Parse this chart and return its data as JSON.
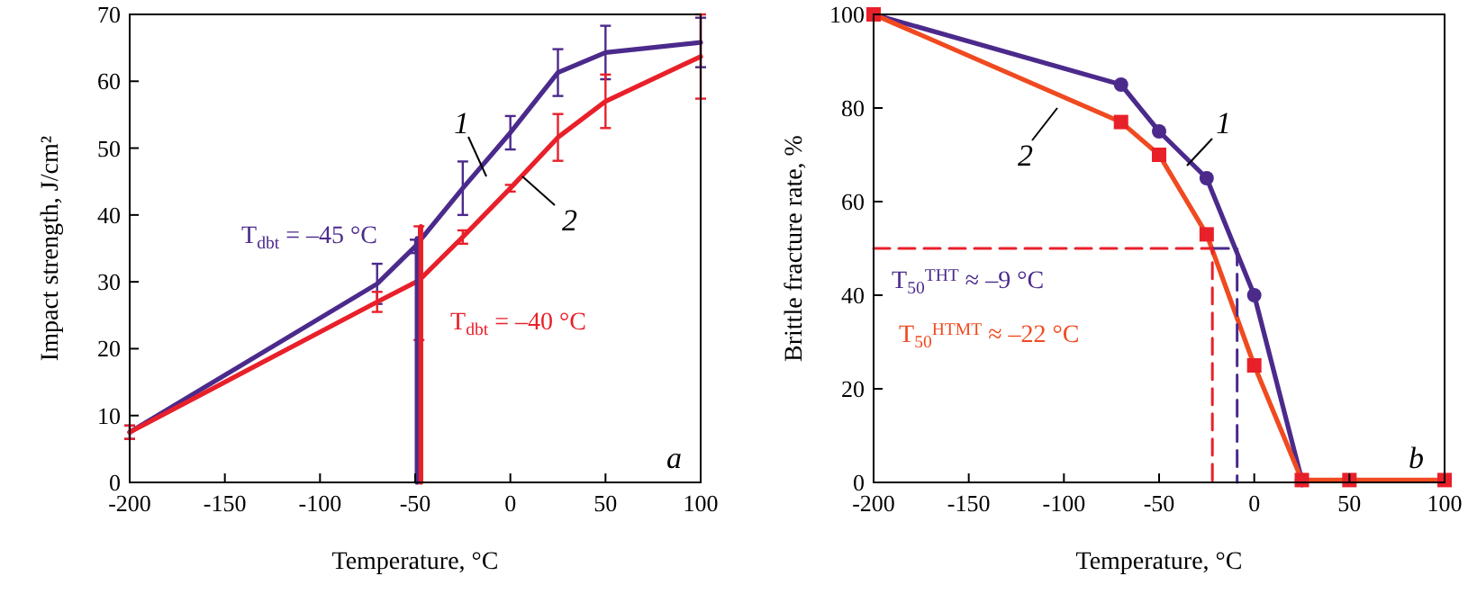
{
  "chart_data": [
    {
      "type": "line",
      "xlabel": "Temperature, °C",
      "ylabel": "Impact strength, J/cm²",
      "xlim": [
        -200,
        100
      ],
      "ylim": [
        0,
        70
      ],
      "xticks": [
        -200,
        -150,
        -100,
        -50,
        0,
        50,
        100
      ],
      "yticks": [
        0,
        10,
        20,
        30,
        40,
        50,
        60,
        70
      ],
      "grid": false,
      "marker": "none",
      "line_style": "solid",
      "series": [
        {
          "color": "#4b2a8c",
          "x": [
            -200,
            -70,
            -50,
            -25,
            0,
            25,
            50,
            100
          ],
          "values": [
            7.5,
            29.7,
            35.3,
            44,
            52.3,
            61.3,
            64.3,
            65.8
          ],
          "errors": [
            1,
            3,
            1,
            4,
            2.5,
            3.5,
            4,
            3.7
          ]
        },
        {
          "color": "#e8202a",
          "x": [
            -200,
            -70,
            -48,
            -25,
            0,
            25,
            50,
            100
          ],
          "values": [
            7.5,
            27,
            30.2,
            36.7,
            44,
            51.6,
            57,
            63.7
          ],
          "errors": [
            1,
            1.5,
            [
              21.3,
              38.3
            ],
            1,
            0.5,
            3.5,
            4,
            [
              57.4,
              70
            ]
          ]
        },
        {
          "color": "#4b2a8c",
          "x": [
            -49,
            -49
          ],
          "values": [
            0,
            36.5
          ]
        },
        {
          "color": "#e8202a",
          "x": [
            -47,
            -47
          ],
          "values": [
            0,
            38.3
          ]
        }
      ],
      "annotations": [
        "1",
        "2",
        "T$_{dbt}$ = –45 °C",
        "T$_{dbt}$ = –40 °C",
        "a"
      ]
    },
    {
      "type": "line",
      "xlabel": "Temperature, °C",
      "ylabel": "Brittle fracture rate, %",
      "xlim": [
        -200,
        100
      ],
      "ylim": [
        0,
        100
      ],
      "xticks": [
        -200,
        -150,
        -100,
        -50,
        0,
        50,
        100
      ],
      "yticks": [
        0,
        20,
        40,
        60,
        80,
        100
      ],
      "grid": false,
      "line_style": "solid",
      "series": [
        {
          "color": "#4b2a8c",
          "marker": "circle",
          "x": [
            -200,
            -70,
            -50,
            -25,
            0,
            25
          ],
          "values": [
            100,
            85,
            75,
            65,
            40,
            0.5
          ]
        },
        {
          "color": "#f04a20",
          "marker": "square",
          "x": [
            -200,
            -70,
            -50,
            -25,
            0,
            25,
            50,
            100
          ],
          "values": [
            100,
            77,
            70,
            53,
            25,
            0.5,
            0.5,
            0.5
          ]
        },
        {
          "color": "#4b2a8c",
          "marker": "none",
          "line_style": "dashed",
          "x": [
            -22,
            -9,
            -9
          ],
          "values": [
            50,
            50,
            0
          ]
        },
        {
          "color": "#e8202a",
          "marker": "none",
          "line_style": "dashed",
          "x": [
            -200,
            -22,
            -22
          ],
          "values": [
            50,
            50,
            0
          ]
        }
      ],
      "annotations": [
        "1",
        "2",
        "T$_{50}$$^{THT}$ ≈ –9 °C",
        "T$_{50}$$^{HTMT}$ ≈ –22 °C",
        "b"
      ]
    }
  ]
}
